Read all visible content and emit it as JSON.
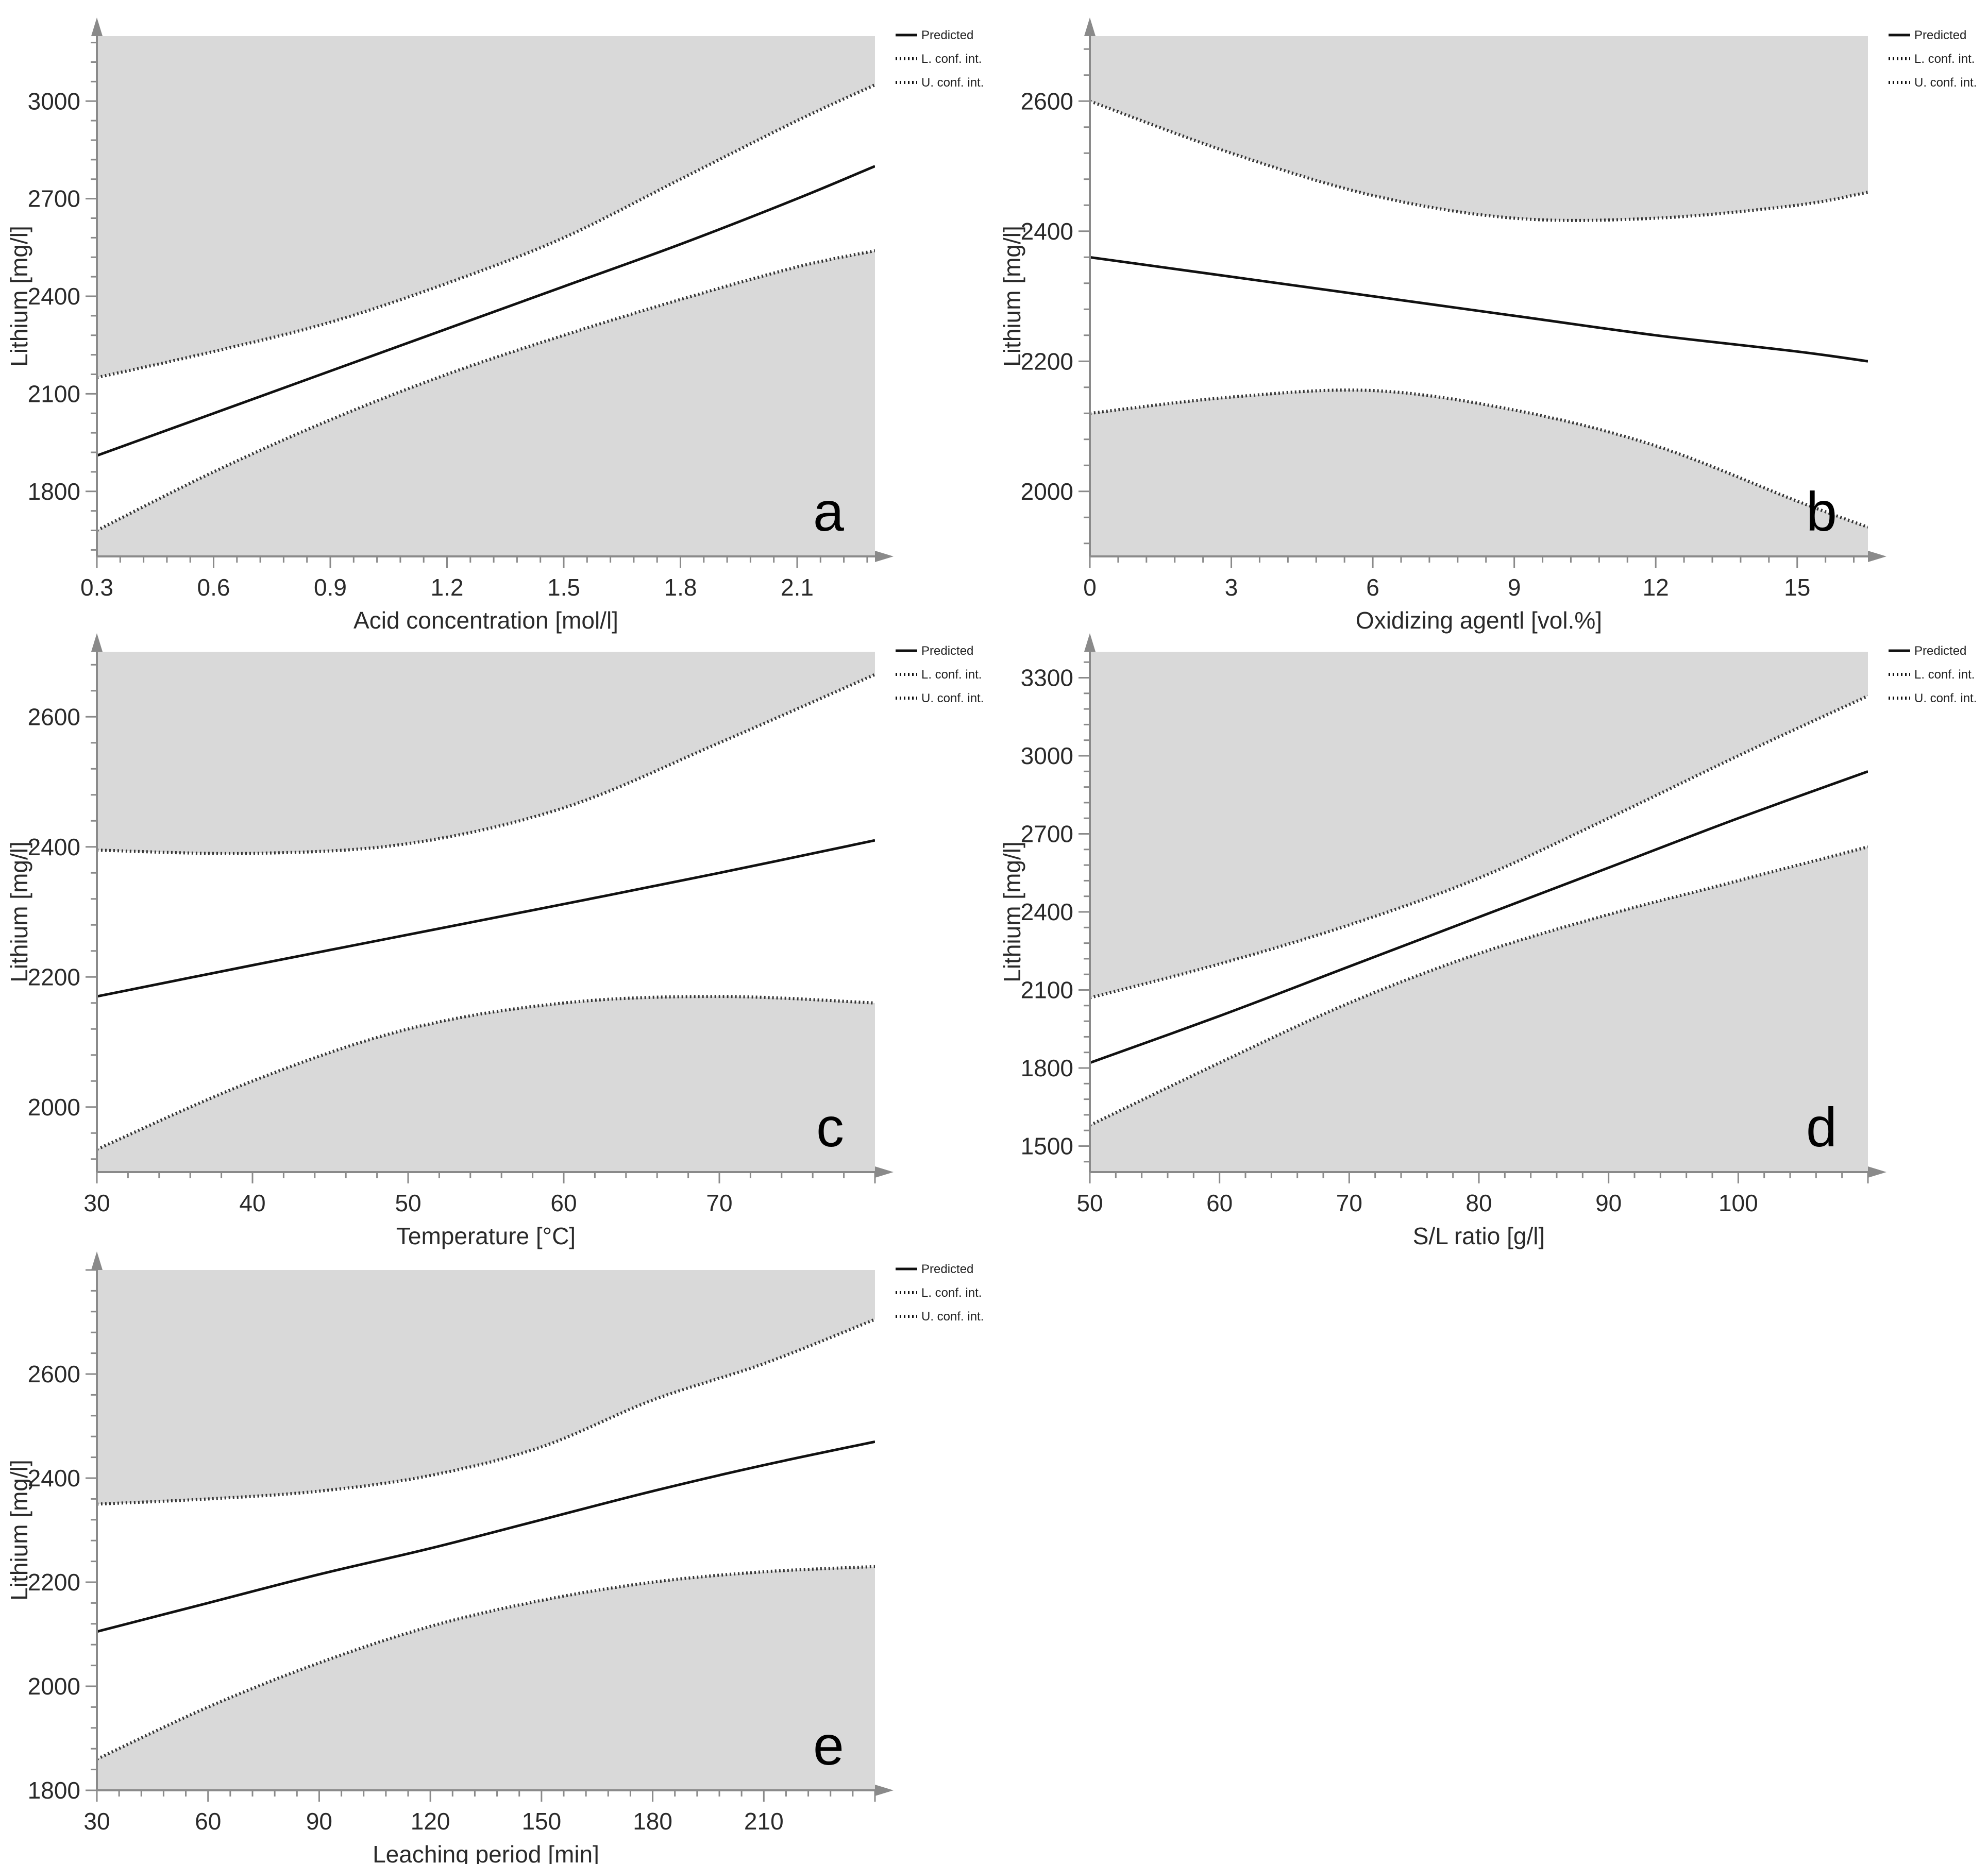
{
  "chart_data": [
    {
      "type": "line",
      "panel": "a",
      "xlabel": "Acid concentration [mol/l]",
      "ylabel": "Lithium [mg/l]",
      "xlim": [
        0.3,
        2.3
      ],
      "ylim": [
        1600,
        3200
      ],
      "xticks": [
        0.3,
        0.6,
        0.9,
        1.2,
        1.5,
        1.8,
        2.1
      ],
      "xtick_labels": [
        "0.3",
        "0.6",
        "0.9",
        "1.2",
        "1.5",
        "1.8",
        "2.1"
      ],
      "yticks": [
        1800,
        2100,
        2400,
        2700,
        3000
      ],
      "x": [
        0.3,
        0.6,
        0.9,
        1.2,
        1.5,
        1.8,
        2.1,
        2.3
      ],
      "series": [
        {
          "name": "Predicted",
          "values": [
            1910,
            2040,
            2170,
            2300,
            2430,
            2560,
            2700,
            2800
          ]
        },
        {
          "name": "L. conf. int.",
          "values": [
            1680,
            1860,
            2020,
            2160,
            2280,
            2390,
            2490,
            2540
          ]
        },
        {
          "name": "U. conf. int.",
          "values": [
            2150,
            2230,
            2320,
            2440,
            2580,
            2760,
            2940,
            3050
          ]
        }
      ],
      "legend": [
        "Predicted",
        "L. conf. int.",
        "U. conf. int."
      ]
    },
    {
      "type": "line",
      "panel": "b",
      "xlabel": "Oxidizing agentl [vol.%]",
      "ylabel": "Lithium [mg/l]",
      "xlim": [
        0,
        16.5
      ],
      "ylim": [
        1900,
        2700
      ],
      "xticks": [
        0,
        3,
        6,
        9,
        12,
        15
      ],
      "xtick_labels": [
        "0",
        "3",
        "6",
        "9",
        "12",
        "15"
      ],
      "yticks": [
        2000,
        2200,
        2400,
        2600
      ],
      "x": [
        0,
        3,
        6,
        9,
        12,
        15,
        16.5
      ],
      "series": [
        {
          "name": "Predicted",
          "values": [
            2360,
            2330,
            2300,
            2270,
            2240,
            2215,
            2200
          ]
        },
        {
          "name": "L. conf. int.",
          "values": [
            2120,
            2145,
            2155,
            2125,
            2070,
            1985,
            1945
          ]
        },
        {
          "name": "U. conf. int.",
          "values": [
            2600,
            2520,
            2455,
            2420,
            2420,
            2440,
            2460
          ]
        }
      ],
      "legend": [
        "Predicted",
        "L. conf. int.",
        "U. conf. int."
      ]
    },
    {
      "type": "line",
      "panel": "c",
      "xlabel": "Temperature [°C]",
      "ylabel": "Lithium [mg/l]",
      "xlim": [
        30,
        80
      ],
      "ylim": [
        1900,
        2700
      ],
      "xticks": [
        30,
        40,
        50,
        60,
        70
      ],
      "xtick_labels": [
        "30",
        "40",
        "50",
        "60",
        "70"
      ],
      "yticks": [
        2000,
        2200,
        2400,
        2600
      ],
      "x": [
        30,
        40,
        50,
        60,
        70,
        80
      ],
      "series": [
        {
          "name": "Predicted",
          "values": [
            2170,
            2218,
            2265,
            2312,
            2360,
            2410
          ]
        },
        {
          "name": "L. conf. int.",
          "values": [
            1935,
            2040,
            2120,
            2160,
            2170,
            2160
          ]
        },
        {
          "name": "U. conf. int.",
          "values": [
            2395,
            2390,
            2405,
            2460,
            2560,
            2665
          ]
        }
      ],
      "legend": [
        "Predicted",
        "L. conf. int.",
        "U. conf. int."
      ]
    },
    {
      "type": "line",
      "panel": "d",
      "xlabel": "S/L ratio [g/l]",
      "ylabel": "Lithium [mg/l]",
      "xlim": [
        50,
        110
      ],
      "ylim": [
        1400,
        3400
      ],
      "xticks": [
        50,
        60,
        70,
        80,
        90,
        100
      ],
      "xtick_labels": [
        "50",
        "60",
        "70",
        "80",
        "90",
        "100"
      ],
      "yticks": [
        1500,
        1800,
        2100,
        2400,
        2700,
        3000,
        3300
      ],
      "x": [
        50,
        60,
        70,
        80,
        90,
        100,
        110
      ],
      "series": [
        {
          "name": "Predicted",
          "values": [
            1820,
            2000,
            2190,
            2380,
            2570,
            2760,
            2940
          ]
        },
        {
          "name": "L. conf. int.",
          "values": [
            1580,
            1820,
            2050,
            2240,
            2390,
            2520,
            2650
          ]
        },
        {
          "name": "U. conf. int.",
          "values": [
            2070,
            2200,
            2350,
            2530,
            2760,
            3000,
            3230
          ]
        }
      ],
      "legend": [
        "Predicted",
        "L. conf. int.",
        "U. conf. int."
      ]
    },
    {
      "type": "line",
      "panel": "e",
      "xlabel": "Leaching period [min]",
      "ylabel": "Lithium [mg/l]",
      "xlim": [
        30,
        240
      ],
      "ylim": [
        1800,
        2800
      ],
      "xticks": [
        30,
        60,
        90,
        120,
        150,
        180,
        210
      ],
      "xtick_labels": [
        "30",
        "60",
        "90",
        "120",
        "150",
        "180",
        "210"
      ],
      "yticks": [
        1800,
        2000,
        2200,
        2400,
        2600
      ],
      "x": [
        30,
        60,
        90,
        120,
        150,
        180,
        210,
        240
      ],
      "series": [
        {
          "name": "Predicted",
          "values": [
            2105,
            2160,
            2215,
            2265,
            2320,
            2375,
            2425,
            2470
          ]
        },
        {
          "name": "L. conf. int.",
          "values": [
            1860,
            1960,
            2045,
            2115,
            2165,
            2200,
            2220,
            2230
          ]
        },
        {
          "name": "U. conf. int.",
          "values": [
            2350,
            2360,
            2375,
            2405,
            2460,
            2550,
            2620,
            2705
          ]
        }
      ],
      "legend": [
        "Predicted",
        "L. conf. int.",
        "U. conf. int."
      ]
    }
  ],
  "colors": {
    "shade": "#d9d9d9",
    "band": "#ffffff",
    "line": "#111111",
    "axis": "#8a8a8a"
  }
}
